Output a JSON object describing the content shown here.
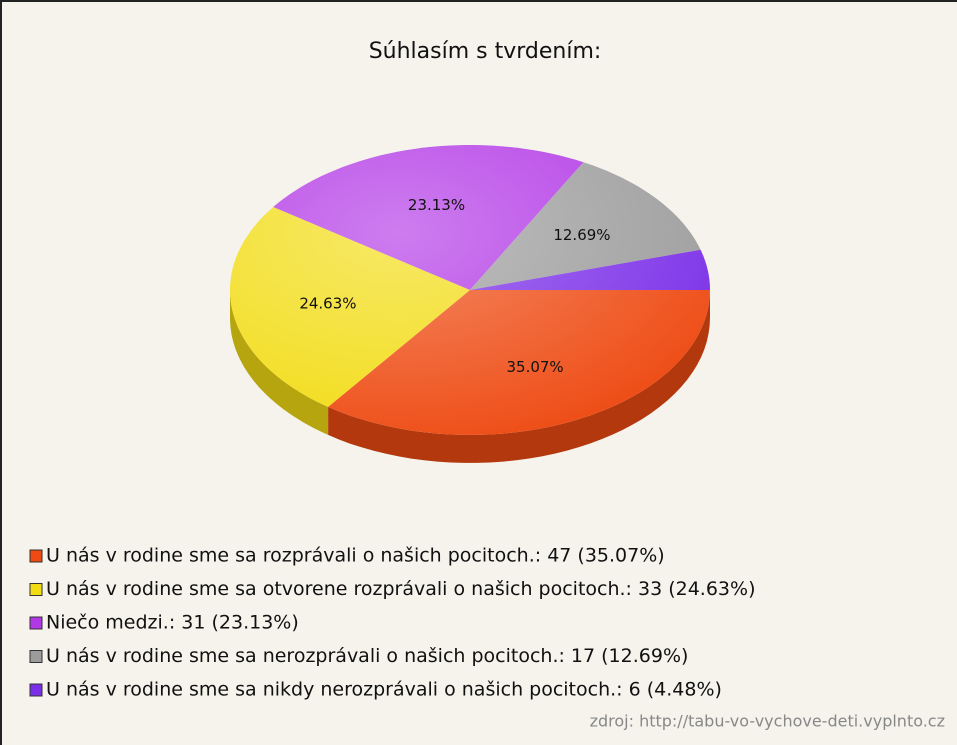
{
  "chart_data": {
    "type": "pie",
    "title": "Súhlasím s tvrdením:",
    "categories": [
      "U nás v rodine sme sa rozprávali o našich pocitoch.: 47 (35.07%)",
      "U nás v rodine sme sa otvorene rozprávali o našich pocitoch.: 33 (24.63%)",
      "Niečo medzi.: 31 (23.13%)",
      "U nás v rodine sme sa nerozprávali o našich pocitoch.: 17 (12.69%)",
      "U nás v rodine sme sa nikdy nerozprávali o našich pocitoch.: 6 (4.48%)"
    ],
    "values": [
      35.07,
      24.63,
      23.13,
      12.69,
      4.48
    ],
    "value_labels": [
      "35.07%",
      "24.63%",
      "23.13%",
      "12.69%",
      null
    ],
    "colors": [
      "#ee4a12",
      "#f2dc14",
      "#b237e6",
      "#9c9c9c",
      "#7a2ee8"
    ],
    "source": "zdroj: http://tabu-vo-vychove-deti.vyplnto.cz"
  }
}
